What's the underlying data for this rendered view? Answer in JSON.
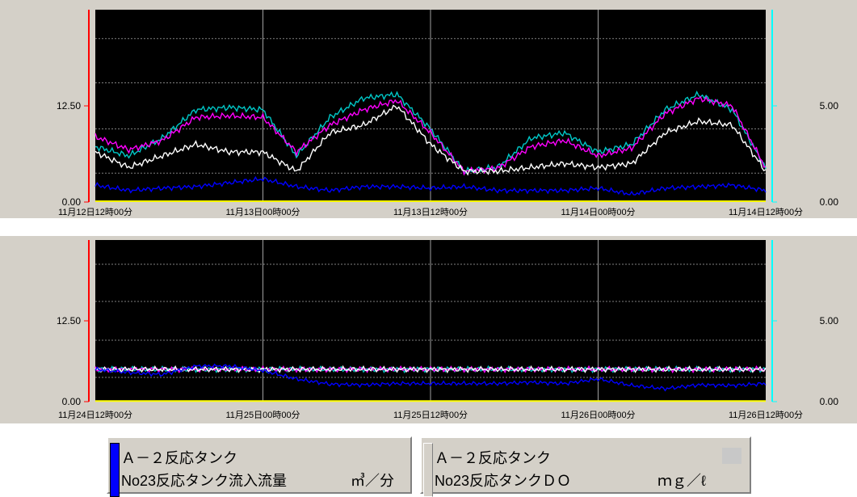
{
  "chart_data": [
    {
      "type": "line",
      "xlabels": [
        "11月12日12時00分",
        "11月13日00時00分",
        "11月13日12時00分",
        "11月14日00時00分",
        "11月14日12時00分"
      ],
      "y_left_ticks": [
        "0.00",
        "12.50"
      ],
      "y_right_ticks": [
        "0.00",
        "5.00"
      ],
      "ylim_left": [
        0,
        25
      ],
      "ylim_right": [
        0,
        10
      ],
      "grid": true,
      "background": "#000000",
      "series": [
        {
          "color": "#00c8c8",
          "values": [
            7.2,
            6.0,
            8.3,
            12.0,
            12.3,
            12.0,
            6.0,
            11.0,
            13.5,
            14.0,
            9.5,
            4.0,
            4.5,
            8.3,
            9.0,
            6.5,
            7.5,
            12.0,
            14.0,
            12.0,
            4.4
          ]
        },
        {
          "color": "#ff00ff",
          "values": [
            8.5,
            6.8,
            8.0,
            11.0,
            11.2,
            11.0,
            6.5,
            10.0,
            12.0,
            13.2,
            9.0,
            4.0,
            4.4,
            7.2,
            8.0,
            6.0,
            7.0,
            11.5,
            13.5,
            12.5,
            4.4
          ]
        },
        {
          "color": "#ffffff",
          "values": [
            6.5,
            4.5,
            6.0,
            7.5,
            6.5,
            6.5,
            4.0,
            9.0,
            10.0,
            12.5,
            7.5,
            4.0,
            4.0,
            4.5,
            5.0,
            4.5,
            5.0,
            9.0,
            10.5,
            10.0,
            4.0
          ]
        },
        {
          "color": "#0000ff",
          "values": [
            2.2,
            1.5,
            1.8,
            2.0,
            2.5,
            3.0,
            2.0,
            1.5,
            2.0,
            2.0,
            1.8,
            2.0,
            1.5,
            1.5,
            1.5,
            1.8,
            1.0,
            1.8,
            2.0,
            2.2,
            1.5
          ]
        },
        {
          "color": "#ffff00",
          "values": [
            0.1,
            0.1,
            0.1,
            0.1,
            0.1,
            0.1,
            0.1,
            0.1,
            0.1,
            0.1,
            0.1,
            0.1,
            0.1,
            0.1,
            0.1,
            0.1,
            0.1,
            0.1,
            0.1,
            0.1,
            0.1
          ]
        }
      ]
    },
    {
      "type": "line",
      "xlabels": [
        "11月24日12時00分",
        "11月25日00時00分",
        "11月25日12時00分",
        "11月26日00時00分",
        "11月26日12時00分"
      ],
      "y_left_ticks": [
        "0.00",
        "12.50"
      ],
      "y_right_ticks": [
        "0.00",
        "5.00"
      ],
      "ylim_left": [
        0,
        25
      ],
      "ylim_right": [
        0,
        10
      ],
      "grid": true,
      "background": "#000000",
      "series": [
        {
          "color": "#00c8c8",
          "values": [
            5.0,
            5.0,
            5.0,
            5.0,
            5.0,
            5.0,
            5.0,
            5.0,
            5.0,
            5.0,
            5.0,
            5.0,
            5.0,
            5.0,
            5.0,
            5.0,
            5.0,
            5.0,
            5.0,
            5.0,
            5.0
          ]
        },
        {
          "color": "#ff00ff",
          "values": [
            5.0,
            5.0,
            5.0,
            5.0,
            5.0,
            5.0,
            5.0,
            5.0,
            5.0,
            5.0,
            5.0,
            5.0,
            5.0,
            5.0,
            5.0,
            5.0,
            5.0,
            5.0,
            5.0,
            5.0,
            5.0
          ]
        },
        {
          "color": "#ffffff",
          "values": [
            5.0,
            5.0,
            5.0,
            5.0,
            5.0,
            5.0,
            5.0,
            5.0,
            5.0,
            5.0,
            5.0,
            5.0,
            5.0,
            5.0,
            5.0,
            5.0,
            5.0,
            5.0,
            5.0,
            5.0,
            5.0
          ]
        },
        {
          "color": "#0000ff",
          "values": [
            5.0,
            4.5,
            4.2,
            5.5,
            5.5,
            4.8,
            3.5,
            2.7,
            2.6,
            2.8,
            2.8,
            2.8,
            2.8,
            3.0,
            2.8,
            3.5,
            2.5,
            2.0,
            2.6,
            2.5,
            2.8
          ]
        },
        {
          "color": "#ffff00",
          "values": [
            0.1,
            0.1,
            0.1,
            0.1,
            0.1,
            0.1,
            0.1,
            0.1,
            0.1,
            0.1,
            0.1,
            0.1,
            0.1,
            0.1,
            0.1,
            0.1,
            0.1,
            0.1,
            0.1,
            0.1,
            0.1
          ]
        }
      ]
    }
  ],
  "legend": {
    "item1": {
      "line1": "Ａ－２反応タンク",
      "line2": "No23反応タンク流入流量",
      "unit": "㎥／分",
      "swatch_color": "#0000ff"
    },
    "item2": {
      "line1": "Ａ－２反応タンク",
      "line2": "No23反応タンクＤＯ",
      "unit": "ｍｇ／ℓ"
    }
  },
  "colors": {
    "left_axis": "#ff0000",
    "right_axis": "#00ffff",
    "plot_bg": "#000000"
  }
}
